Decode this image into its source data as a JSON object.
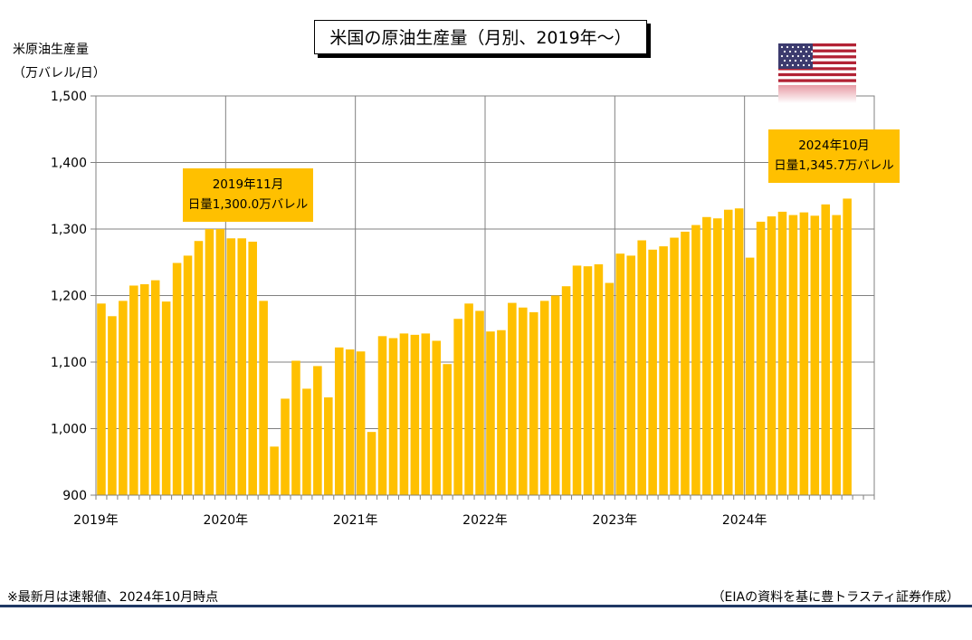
{
  "title": "米国の原油生産量（月別、2019年～）",
  "ylabel_line1": "米原油生産量",
  "ylabel_line2": "（万バレル/日）",
  "callouts": [
    {
      "line1": "2019年11月",
      "line2": "日量1,300.0万バレル"
    },
    {
      "line1": "2024年10月",
      "line2": "日量1,345.7万バレル"
    }
  ],
  "footer": {
    "note": "※最新月は速報値、2024年10月時点",
    "source": "（EIAの資料を基に豊トラスティ証券作成）"
  },
  "flag_icon": "us-flag-icon",
  "colors": {
    "bar": "#ffc000",
    "grid": "#808080",
    "footer_rule": "#1f3864"
  },
  "chart_data": {
    "type": "bar",
    "title": "米国の原油生産量（月別、2019年～）",
    "ylabel": "米原油生産量（万バレル/日）",
    "xlabel": "",
    "ylim": [
      900,
      1500
    ],
    "yticks": [
      900,
      1000,
      1100,
      1200,
      1300,
      1400,
      1500
    ],
    "ytick_labels": [
      "900",
      "1,000",
      "1,100",
      "1,200",
      "1,300",
      "1,400",
      "1,500"
    ],
    "year_labels": [
      "2019年",
      "2020年",
      "2021年",
      "2022年",
      "2023年",
      "2024年"
    ],
    "grid": true,
    "categories": [
      "2019-01",
      "2019-02",
      "2019-03",
      "2019-04",
      "2019-05",
      "2019-06",
      "2019-07",
      "2019-08",
      "2019-09",
      "2019-10",
      "2019-11",
      "2019-12",
      "2020-01",
      "2020-02",
      "2020-03",
      "2020-04",
      "2020-05",
      "2020-06",
      "2020-07",
      "2020-08",
      "2020-09",
      "2020-10",
      "2020-11",
      "2020-12",
      "2021-01",
      "2021-02",
      "2021-03",
      "2021-04",
      "2021-05",
      "2021-06",
      "2021-07",
      "2021-08",
      "2021-09",
      "2021-10",
      "2021-11",
      "2021-12",
      "2022-01",
      "2022-02",
      "2022-03",
      "2022-04",
      "2022-05",
      "2022-06",
      "2022-07",
      "2022-08",
      "2022-09",
      "2022-10",
      "2022-11",
      "2022-12",
      "2023-01",
      "2023-02",
      "2023-03",
      "2023-04",
      "2023-05",
      "2023-06",
      "2023-07",
      "2023-08",
      "2023-09",
      "2023-10",
      "2023-11",
      "2023-12",
      "2024-01",
      "2024-02",
      "2024-03",
      "2024-04",
      "2024-05",
      "2024-06",
      "2024-07",
      "2024-08",
      "2024-09",
      "2024-10"
    ],
    "values": [
      1188,
      1169,
      1192,
      1215,
      1217,
      1223,
      1191,
      1249,
      1260,
      1282,
      1300.0,
      1300,
      1286,
      1286,
      1281,
      1192,
      973,
      1045,
      1102,
      1060,
      1094,
      1047,
      1122,
      1119,
      1116,
      995,
      1139,
      1136,
      1143,
      1141,
      1143,
      1132,
      1097,
      1165,
      1188,
      1177,
      1146,
      1148,
      1189,
      1182,
      1175,
      1192,
      1200,
      1214,
      1245,
      1244,
      1247,
      1219,
      1263,
      1260,
      1283,
      1269,
      1274,
      1287,
      1296,
      1306,
      1318,
      1316,
      1329,
      1331,
      1257,
      1311,
      1319,
      1326,
      1321,
      1325,
      1320,
      1337,
      1321,
      1345.7
    ]
  }
}
